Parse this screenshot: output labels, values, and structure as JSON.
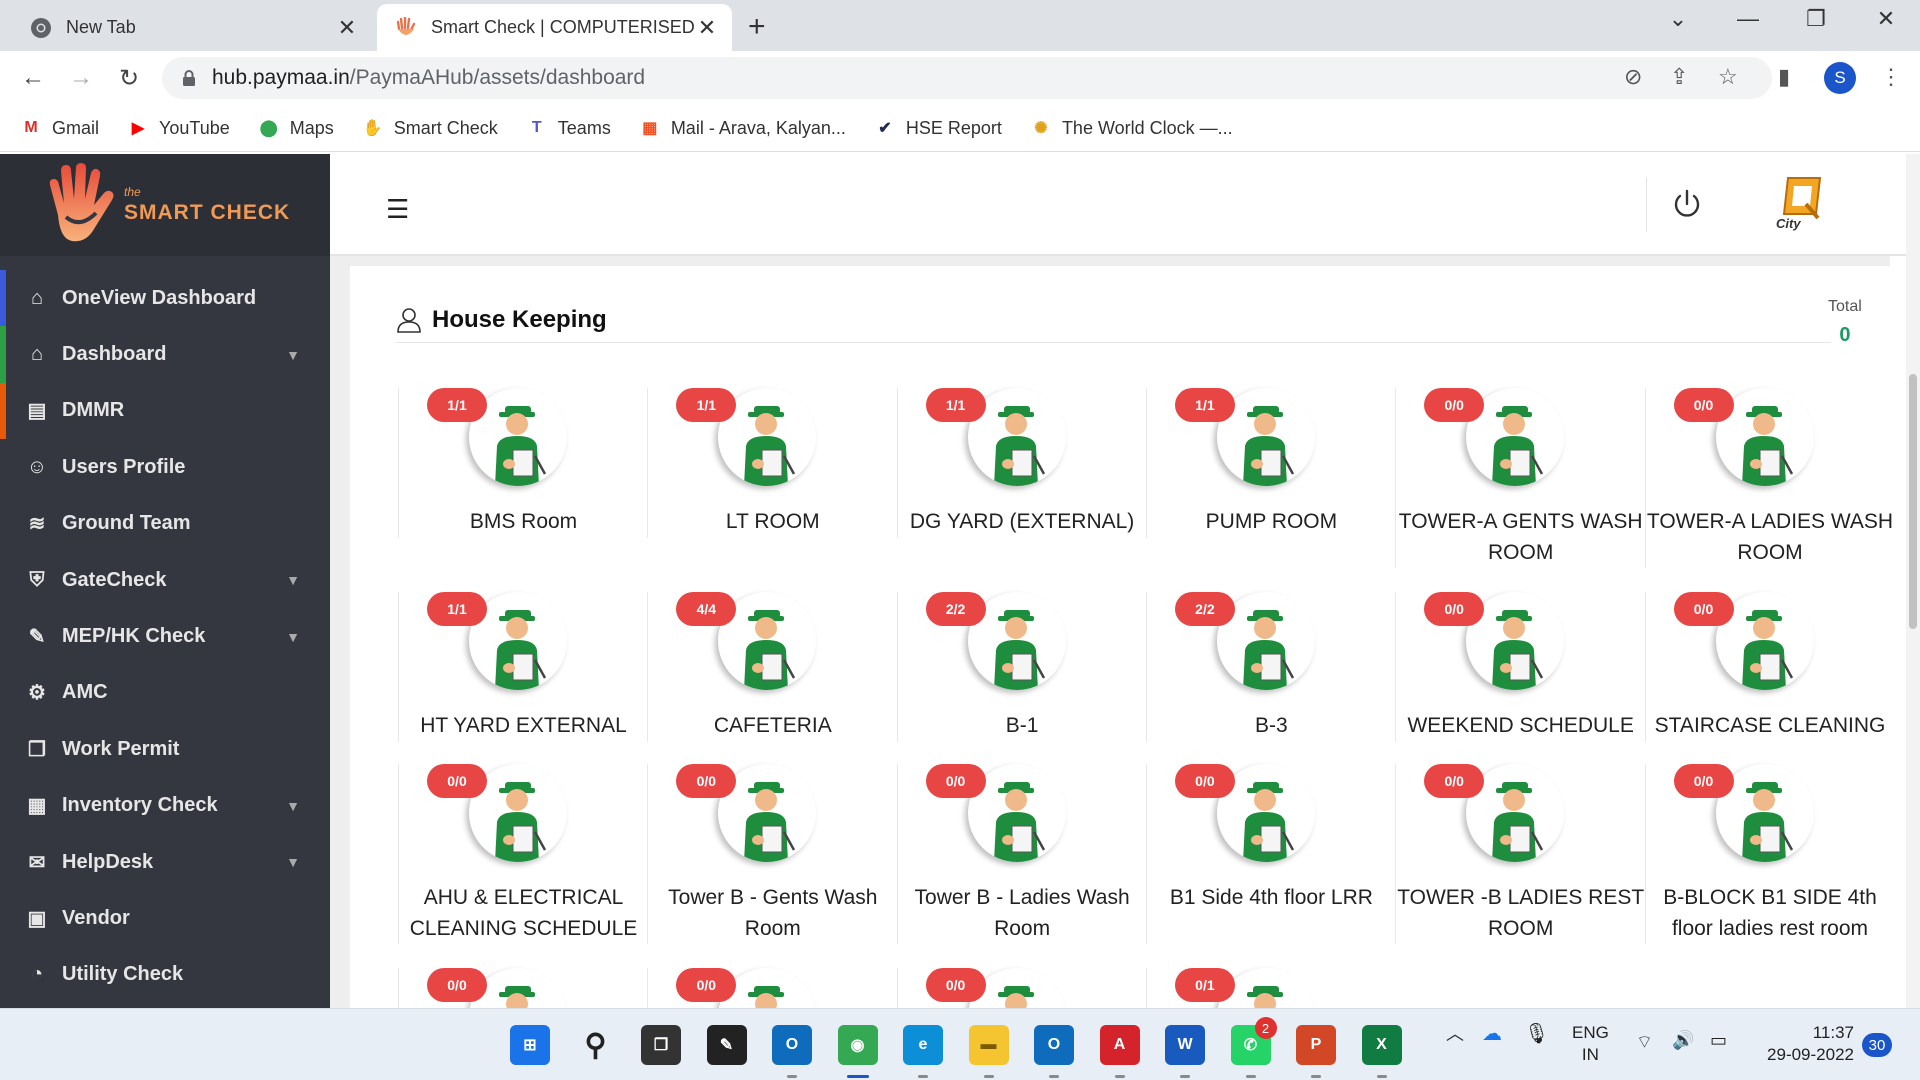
{
  "browser": {
    "tabs": [
      {
        "title": "New Tab",
        "icon": "chrome-icon"
      },
      {
        "title": "Smart Check | COMPUTERISED M",
        "icon": "hand-icon"
      }
    ],
    "url_host": "hub.paymaa.in",
    "url_path": "/PaymaAHub/assets/dashboard",
    "profile_initial": "S",
    "bookmarks": [
      {
        "label": "Gmail",
        "icon": "gmail-icon"
      },
      {
        "label": "YouTube",
        "icon": "youtube-icon"
      },
      {
        "label": "Maps",
        "icon": "maps-icon"
      },
      {
        "label": "Smart Check",
        "icon": "hand-icon"
      },
      {
        "label": "Teams",
        "icon": "teams-icon"
      },
      {
        "label": "Mail - Arava, Kalyan...",
        "icon": "windows-icon"
      },
      {
        "label": "HSE Report",
        "icon": "check-icon"
      },
      {
        "label": "The World Clock —...",
        "icon": "clock-icon"
      }
    ]
  },
  "sidebar": {
    "brand_small": "the",
    "brand": "SMART CHECK",
    "items": [
      {
        "label": "OneView Dashboard",
        "icon": "home-icon",
        "has_caret": false,
        "accent": "#3b5bdb"
      },
      {
        "label": "Dashboard",
        "icon": "house-outline-icon",
        "has_caret": true,
        "accent": "#2f9e44"
      },
      {
        "label": "DMMR",
        "icon": "file-icon",
        "has_caret": false,
        "accent": "#e8590c"
      },
      {
        "label": "Users Profile",
        "icon": "user-icon",
        "has_caret": false,
        "accent": ""
      },
      {
        "label": "Ground Team",
        "icon": "layers-icon",
        "has_caret": false,
        "accent": ""
      },
      {
        "label": "GateCheck",
        "icon": "shield-icon",
        "has_caret": true,
        "accent": ""
      },
      {
        "label": "MEP/HK Check",
        "icon": "edit-icon",
        "has_caret": true,
        "accent": ""
      },
      {
        "label": "AMC",
        "icon": "gears-icon",
        "has_caret": false,
        "accent": ""
      },
      {
        "label": "Work Permit",
        "icon": "document-icon",
        "has_caret": false,
        "accent": ""
      },
      {
        "label": "Inventory Check",
        "icon": "calendar-icon",
        "has_caret": true,
        "accent": ""
      },
      {
        "label": "HelpDesk",
        "icon": "chat-icon",
        "has_caret": true,
        "accent": ""
      },
      {
        "label": "Vendor",
        "icon": "briefcase-icon",
        "has_caret": false,
        "accent": ""
      },
      {
        "label": "Utility Check",
        "icon": "gauge-icon",
        "has_caret": false,
        "accent": ""
      }
    ]
  },
  "client_logo_text": "City",
  "section": {
    "title": "House Keeping",
    "total_label": "Total",
    "total_value": "0"
  },
  "tiles": [
    {
      "badge": "1/1",
      "name": "BMS Room"
    },
    {
      "badge": "1/1",
      "name": "LT ROOM"
    },
    {
      "badge": "1/1",
      "name": "DG YARD (EXTERNAL)"
    },
    {
      "badge": "1/1",
      "name": "PUMP ROOM"
    },
    {
      "badge": "0/0",
      "name": "TOWER-A GENTS WASH ROOM"
    },
    {
      "badge": "0/0",
      "name": "TOWER-A LADIES WASH ROOM"
    },
    {
      "badge": "1/1",
      "name": "HT YARD EXTERNAL"
    },
    {
      "badge": "4/4",
      "name": "CAFETERIA"
    },
    {
      "badge": "2/2",
      "name": "B-1"
    },
    {
      "badge": "2/2",
      "name": "B-3"
    },
    {
      "badge": "0/0",
      "name": "WEEKEND SCHEDULE"
    },
    {
      "badge": "0/0",
      "name": "STAIRCASE CLEANING"
    },
    {
      "badge": "0/0",
      "name": "AHU & ELECTRICAL CLEANING SCHEDULE"
    },
    {
      "badge": "0/0",
      "name": "Tower B - Gents Wash Room"
    },
    {
      "badge": "0/0",
      "name": "Tower B - Ladies Wash Room"
    },
    {
      "badge": "0/0",
      "name": "B1 Side 4th floor LRR"
    },
    {
      "badge": "0/0",
      "name": "TOWER -B LADIES REST ROOM"
    },
    {
      "badge": "0/0",
      "name": "B-BLOCK B1 SIDE 4th floor ladies rest room"
    },
    {
      "badge": "0/0",
      "name": ""
    },
    {
      "badge": "0/0",
      "name": ""
    },
    {
      "badge": "0/0",
      "name": ""
    },
    {
      "badge": "0/1",
      "name": ""
    }
  ],
  "taskbar": {
    "lang_top": "ENG",
    "lang_bottom": "IN",
    "time": "11:37",
    "date": "29-09-2022",
    "notifications": "30",
    "whatsapp_badge": "2",
    "apps": [
      "windows-start-icon",
      "search-icon",
      "task-view-icon",
      "sticky-notes-icon",
      "outlook-icon",
      "chrome-icon",
      "edge-icon",
      "file-explorer-icon",
      "outlook-new-icon",
      "acrobat-icon",
      "word-icon",
      "whatsapp-icon",
      "powerpoint-icon",
      "excel-icon"
    ]
  }
}
